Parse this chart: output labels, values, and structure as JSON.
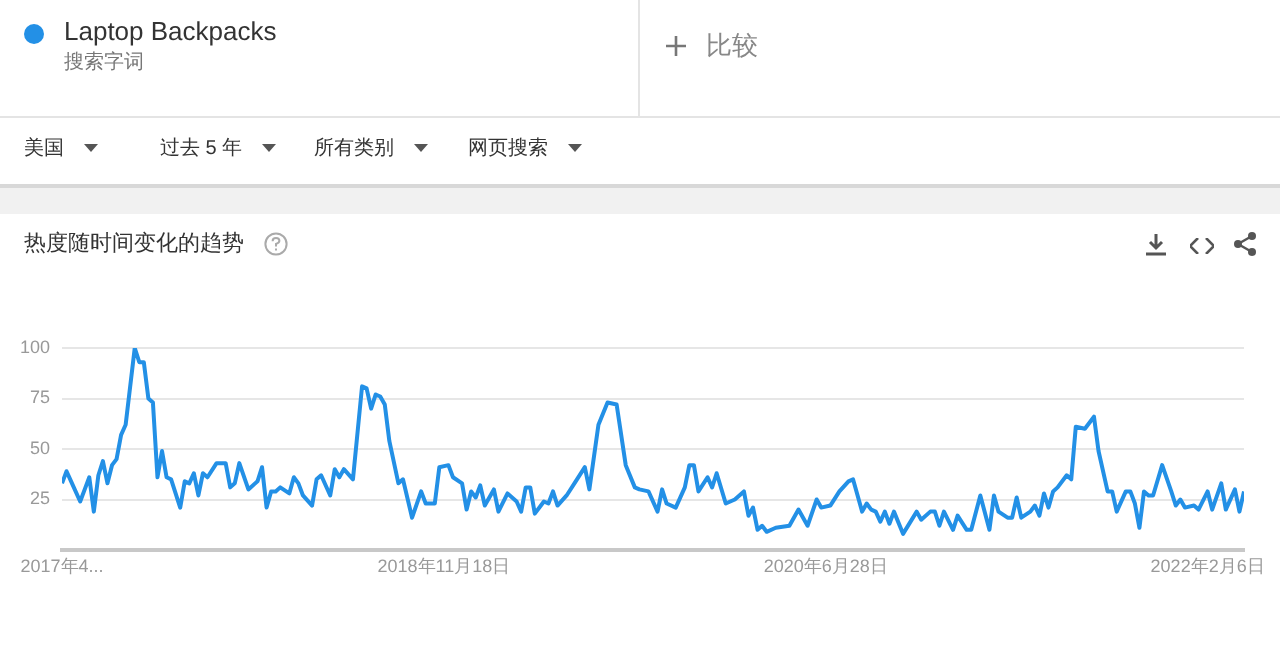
{
  "chart_data": {
    "type": "line",
    "title": "热度随时间变化的趋势",
    "annotations": [
      "搜索字词",
      "比较",
      "美国",
      "过去 5 年",
      "所有类别",
      "网页搜索"
    ],
    "legend": "top left",
    "grid": "y",
    "ylim": [
      0,
      100
    ],
    "yticks": [
      25,
      50,
      75,
      100
    ],
    "xlim": [
      "2017-04-09",
      "2022-04-03"
    ],
    "xticks": [
      {
        "value": "2017-04-09",
        "label": "2017年4..."
      },
      {
        "value": "2018-11-18",
        "label": "2018年11月18日"
      },
      {
        "value": "2020-06-28",
        "label": "2020年6月28日"
      },
      {
        "value": "2022-02-06",
        "label": "2022年2月6日"
      }
    ],
    "series": [
      {
        "name": "Laptop Backpacks",
        "color": "#2390e6",
        "x": [
          "2017-04-09",
          "2017-04-16",
          "2017-04-23",
          "2017-05-07",
          "2017-05-14",
          "2017-05-21",
          "2017-05-28",
          "2017-06-04",
          "2017-06-11",
          "2017-06-18",
          "2017-06-25",
          "2017-07-02",
          "2017-07-09",
          "2017-07-16",
          "2017-07-30",
          "2017-08-06",
          "2017-08-13",
          "2017-08-20",
          "2017-08-27",
          "2017-09-03",
          "2017-09-10",
          "2017-09-17",
          "2017-09-24",
          "2017-10-08",
          "2017-10-15",
          "2017-10-22",
          "2017-10-29",
          "2017-11-05",
          "2017-11-12",
          "2017-11-19",
          "2017-12-03",
          "2017-12-17",
          "2017-12-24",
          "2017-12-31",
          "2018-01-07",
          "2018-01-21",
          "2018-02-04",
          "2018-02-11",
          "2018-02-18",
          "2018-02-25",
          "2018-03-04",
          "2018-03-11",
          "2018-03-25",
          "2018-04-01",
          "2018-04-08",
          "2018-04-15",
          "2018-04-29",
          "2018-05-06",
          "2018-05-13",
          "2018-05-27",
          "2018-06-03",
          "2018-06-10",
          "2018-06-17",
          "2018-07-01",
          "2018-07-15",
          "2018-07-22",
          "2018-07-29",
          "2018-08-05",
          "2018-08-12",
          "2018-08-19",
          "2018-08-26",
          "2018-09-09",
          "2018-09-16",
          "2018-09-30",
          "2018-10-14",
          "2018-10-21",
          "2018-11-04",
          "2018-11-11",
          "2018-11-25",
          "2018-12-02",
          "2018-12-16",
          "2018-12-23",
          "2018-12-30",
          "2019-01-06",
          "2019-01-13",
          "2019-01-20",
          "2019-02-03",
          "2019-02-10",
          "2019-02-24",
          "2019-03-10",
          "2019-03-17",
          "2019-03-24",
          "2019-03-31",
          "2019-04-07",
          "2019-04-21",
          "2019-04-28",
          "2019-05-05",
          "2019-05-12",
          "2019-05-26",
          "2019-06-09",
          "2019-06-23",
          "2019-06-30",
          "2019-07-14",
          "2019-07-28",
          "2019-08-11",
          "2019-08-25",
          "2019-09-08",
          "2019-09-15",
          "2019-09-29",
          "2019-10-13",
          "2019-10-20",
          "2019-10-27",
          "2019-11-10",
          "2019-11-24",
          "2019-12-01",
          "2019-12-08",
          "2019-12-15",
          "2019-12-29",
          "2020-01-05",
          "2020-01-12",
          "2020-01-26",
          "2020-02-09",
          "2020-02-16",
          "2020-02-23",
          "2020-03-01",
          "2020-03-08",
          "2020-03-15",
          "2020-03-22",
          "2020-03-29",
          "2020-04-12",
          "2020-05-03",
          "2020-05-17",
          "2020-05-31",
          "2020-06-14",
          "2020-06-21",
          "2020-07-05",
          "2020-07-19",
          "2020-08-02",
          "2020-08-09",
          "2020-08-23",
          "2020-08-30",
          "2020-09-06",
          "2020-09-13",
          "2020-09-20",
          "2020-09-27",
          "2020-10-04",
          "2020-10-11",
          "2020-10-25",
          "2020-11-15",
          "2020-11-22",
          "2020-12-06",
          "2020-12-13",
          "2020-12-20",
          "2020-12-27",
          "2021-01-10",
          "2021-01-17",
          "2021-01-31",
          "2021-02-07",
          "2021-02-21",
          "2021-03-07",
          "2021-03-14",
          "2021-03-21",
          "2021-04-04",
          "2021-04-11",
          "2021-04-18",
          "2021-04-25",
          "2021-05-09",
          "2021-05-16",
          "2021-05-23",
          "2021-05-30",
          "2021-06-06",
          "2021-06-13",
          "2021-06-20",
          "2021-07-04",
          "2021-07-11",
          "2021-07-18",
          "2021-08-01",
          "2021-08-15",
          "2021-08-22",
          "2021-09-05",
          "2021-09-12",
          "2021-09-19",
          "2021-10-03",
          "2021-10-10",
          "2021-10-17",
          "2021-10-24",
          "2021-10-31",
          "2021-11-07",
          "2021-11-14",
          "2021-11-28",
          "2021-12-12",
          "2021-12-19",
          "2021-12-26",
          "2022-01-02",
          "2022-01-16",
          "2022-01-23",
          "2022-02-06",
          "2022-02-13",
          "2022-02-27",
          "2022-03-06",
          "2022-03-20",
          "2022-03-27",
          "2022-04-03"
        ],
        "values": [
          33,
          39,
          34,
          24,
          30,
          36,
          19,
          37,
          44,
          33,
          42,
          45,
          57,
          62,
          100,
          93,
          93,
          75,
          73,
          36,
          49,
          36,
          35,
          21,
          34,
          33,
          38,
          27,
          38,
          36,
          43,
          43,
          31,
          33,
          43,
          30,
          34,
          41,
          21,
          29,
          29,
          31,
          28,
          36,
          33,
          27,
          22,
          35,
          37,
          27,
          40,
          36,
          40,
          35,
          81,
          80,
          70,
          77,
          76,
          72,
          54,
          33,
          35,
          16,
          29,
          23,
          23,
          41,
          42,
          36,
          33,
          20,
          29,
          26,
          32,
          22,
          30,
          19,
          28,
          24,
          19,
          31,
          31,
          18,
          24,
          23,
          29,
          22,
          27,
          34,
          41,
          30,
          62,
          73,
          72,
          42,
          31,
          30,
          29,
          19,
          30,
          23,
          21,
          31,
          42,
          42,
          29,
          36,
          31,
          38,
          23,
          25,
          27,
          29,
          17,
          21,
          10,
          12,
          9,
          11,
          12,
          20,
          12,
          25,
          21,
          22,
          29,
          34,
          35,
          19,
          23,
          20,
          19,
          14,
          19,
          13,
          19,
          8,
          19,
          15,
          19,
          19,
          12,
          19,
          10,
          17,
          10,
          10,
          27,
          10,
          27,
          19,
          16,
          16,
          26,
          16,
          19,
          22,
          17,
          28,
          21,
          29,
          31,
          37,
          35,
          61,
          60,
          66,
          49,
          29,
          29,
          19,
          29,
          29,
          23,
          11,
          29,
          27,
          27,
          42,
          29,
          22,
          25,
          21,
          22,
          20,
          29,
          20,
          33,
          20,
          30,
          19,
          29
        ]
      }
    ]
  }
}
